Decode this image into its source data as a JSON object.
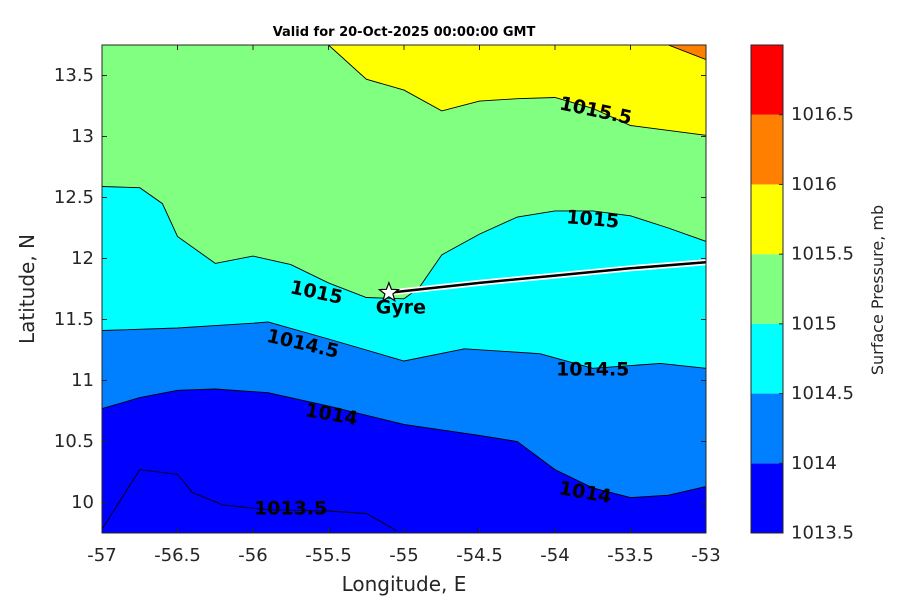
{
  "chart_data": {
    "type": "contour",
    "title": "Valid for 20-Oct-2025 00:00:00 GMT",
    "xlabel": "Longitude, E",
    "ylabel": "Latitude, N",
    "xlim": [
      -57,
      -53
    ],
    "ylim": [
      9.75,
      13.75
    ],
    "x_ticks": [
      -57,
      -56.5,
      -56,
      -55.5,
      -55,
      -54.5,
      -54,
      -53.5,
      -53
    ],
    "x_tick_labels": [
      "-57",
      "-56.5",
      "-56",
      "-55.5",
      "-55",
      "-54.5",
      "-54",
      "-53.5",
      "-53"
    ],
    "y_ticks": [
      10,
      10.5,
      11,
      11.5,
      12,
      12.5,
      13,
      13.5
    ],
    "y_tick_labels": [
      "10",
      "10.5",
      "11",
      "11.5",
      "12",
      "12.5",
      "13",
      "13.5"
    ],
    "colorbar": {
      "label": "Surface Pressure, mb",
      "tick_labels": [
        "1013.5",
        "1014",
        "1014.5",
        "1015",
        "1015.5",
        "1016",
        "1016.5"
      ],
      "bands": [
        {
          "from": 1013.5,
          "to": 1014,
          "color": "#0000ff"
        },
        {
          "from": 1014,
          "to": 1014.5,
          "color": "#0080ff"
        },
        {
          "from": 1014.5,
          "to": 1015,
          "color": "#00ffff"
        },
        {
          "from": 1015,
          "to": 1015.5,
          "color": "#80ff80"
        },
        {
          "from": 1015.5,
          "to": 1016,
          "color": "#ffff00"
        },
        {
          "from": 1016,
          "to": 1016.5,
          "color": "#ff8000"
        },
        {
          "from": 1016.5,
          "to": 1017,
          "color": "#ff0000"
        }
      ]
    },
    "contours": [
      {
        "level": 1013.5,
        "points": [
          [
            -57,
            9.78
          ],
          [
            -56.75,
            10.27
          ],
          [
            -56.5,
            10.23
          ],
          [
            -56.4,
            10.08
          ],
          [
            -56.2,
            9.98
          ],
          [
            -55.9,
            9.94
          ],
          [
            -55.5,
            9.93
          ],
          [
            -55.25,
            9.91
          ],
          [
            -55.05,
            9.77
          ]
        ]
      },
      {
        "level": 1014,
        "points": [
          [
            -57,
            10.77
          ],
          [
            -56.75,
            10.86
          ],
          [
            -56.5,
            10.92
          ],
          [
            -56.25,
            10.93
          ],
          [
            -55.9,
            10.9
          ],
          [
            -55.5,
            10.79
          ],
          [
            -55,
            10.64
          ],
          [
            -54.5,
            10.55
          ],
          [
            -54.25,
            10.5
          ],
          [
            -54,
            10.27
          ],
          [
            -53.75,
            10.12
          ],
          [
            -53.5,
            10.04
          ],
          [
            -53.25,
            10.06
          ],
          [
            -53,
            10.13
          ]
        ]
      },
      {
        "level": 1014.5,
        "points": [
          [
            -57,
            11.41
          ],
          [
            -56.5,
            11.43
          ],
          [
            -56.25,
            11.45
          ],
          [
            -56,
            11.47
          ],
          [
            -55.9,
            11.48
          ],
          [
            -55.5,
            11.34
          ],
          [
            -55,
            11.16
          ],
          [
            -54.6,
            11.26
          ],
          [
            -54.1,
            11.22
          ],
          [
            -53.75,
            11.1
          ],
          [
            -53.3,
            11.14
          ],
          [
            -53,
            11.1
          ]
        ]
      },
      {
        "level": 1015,
        "points": [
          [
            -57,
            12.59
          ],
          [
            -56.75,
            12.58
          ],
          [
            -56.6,
            12.45
          ],
          [
            -56.5,
            12.18
          ],
          [
            -56.25,
            11.96
          ],
          [
            -56,
            12.02
          ],
          [
            -55.75,
            11.95
          ],
          [
            -55.5,
            11.8
          ],
          [
            -55.25,
            11.68
          ],
          [
            -55,
            11.67
          ],
          [
            -54.9,
            11.76
          ],
          [
            -54.75,
            12.03
          ],
          [
            -54.5,
            12.2
          ],
          [
            -54.25,
            12.34
          ],
          [
            -54,
            12.39
          ],
          [
            -53.75,
            12.39
          ],
          [
            -53.5,
            12.35
          ],
          [
            -53.25,
            12.25
          ],
          [
            -53,
            12.14
          ]
        ]
      },
      {
        "level": 1015.5,
        "points": [
          [
            -55.5,
            13.75
          ],
          [
            -55.25,
            13.47
          ],
          [
            -55,
            13.38
          ],
          [
            -54.75,
            13.21
          ],
          [
            -54.5,
            13.29
          ],
          [
            -54.25,
            13.31
          ],
          [
            -54,
            13.32
          ],
          [
            -53.75,
            13.23
          ],
          [
            -53.5,
            13.09
          ],
          [
            -53,
            13.01
          ]
        ]
      },
      {
        "level": 1016,
        "points": [
          [
            -53.25,
            13.75
          ],
          [
            -53,
            13.63
          ]
        ]
      }
    ],
    "contour_labels": [
      {
        "text": "1015.5",
        "x": -53.73,
        "y": 13.21,
        "angle": 12
      },
      {
        "text": "1015",
        "x": -53.75,
        "y": 12.32,
        "angle": 5
      },
      {
        "text": "1015",
        "x": -55.58,
        "y": 11.72,
        "angle": 12
      },
      {
        "text": "1014.5",
        "x": -55.67,
        "y": 11.3,
        "angle": 13
      },
      {
        "text": "1014.5",
        "x": -53.75,
        "y": 11.09,
        "angle": 0
      },
      {
        "text": "1014",
        "x": -55.48,
        "y": 10.72,
        "angle": 10
      },
      {
        "text": "1014",
        "x": -53.8,
        "y": 10.08,
        "angle": 10
      },
      {
        "text": "1013.5",
        "x": -55.75,
        "y": 9.95,
        "angle": 0
      }
    ],
    "track": {
      "points": [
        [
          -55.1,
          11.72
        ],
        [
          -54.5,
          11.8
        ],
        [
          -54,
          11.86
        ],
        [
          -53.5,
          11.92
        ],
        [
          -53,
          11.97
        ]
      ]
    },
    "markers": [
      {
        "label": "Gyre",
        "x": -55.1,
        "y": 11.72,
        "symbol": "star"
      }
    ]
  }
}
